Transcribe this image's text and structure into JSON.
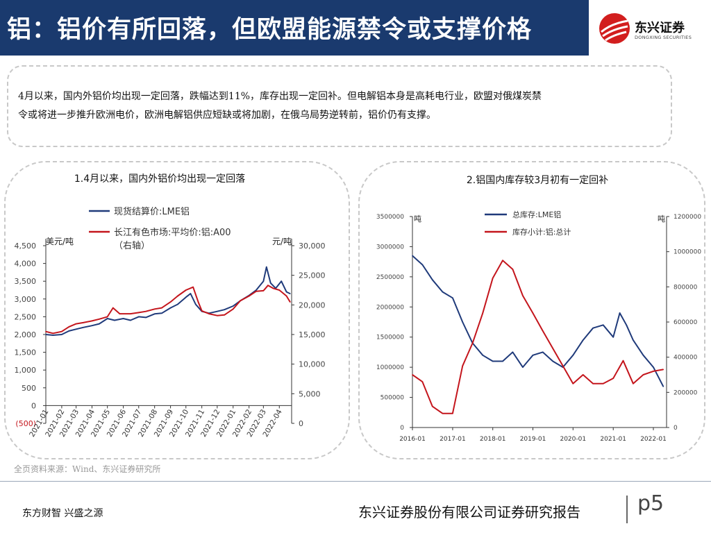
{
  "header": {
    "title": "铝：铝价有所回落，但欧盟能源禁令或支撑价格"
  },
  "logo": {
    "name": "东兴证券",
    "name_en": "DONGXING SECURITIES"
  },
  "summary": {
    "line1": "4月以来，国内外铝价均出现一定回落，跌幅达到11%，库存出现一定回补。但电解铝本身是高耗电行业，欧盟对俄煤炭禁",
    "line2": "令或将进一步推升欧洲电价，欧洲电解铝供应短缺或将加剧，在俄乌局势逆转前，铝价仍有支撑。"
  },
  "source": "全页资料来源：Wind、东兴证券研究所",
  "footer": {
    "left": "东方财智 兴盛之源",
    "right": "东兴证券股份有限公司证券研究报告",
    "page": "p5"
  },
  "colors": {
    "navy": "#1f3a7a",
    "red": "#c4151c",
    "header_bg": "#1a3a6e"
  },
  "chart_data": [
    {
      "type": "line",
      "title": "1.4月以来，国内外铝价均出现一定回落",
      "left_unit": "美元/吨",
      "right_unit": "元/吨",
      "y_left_ticks": [
        "4,500",
        "4,000",
        "3,500",
        "3,000",
        "2,500",
        "2,000",
        "1,500",
        "1,000",
        "500",
        "0",
        "(500)"
      ],
      "y_right_ticks": [
        "30,000",
        "25,000",
        "20,000",
        "15,000",
        "10,000",
        "5,000",
        "0"
      ],
      "ylim_left": [
        -500,
        4500
      ],
      "ylim_right": [
        0,
        30000
      ],
      "x_ticks": [
        "2021-01",
        "2021-02",
        "2021-03",
        "2021-04",
        "2021-05",
        "2021-06",
        "2021-07",
        "2021-08",
        "2021-09",
        "2021-10",
        "2021-11",
        "2021-12",
        "2022-01",
        "2022-02",
        "2022-03",
        "2022-04"
      ],
      "series": [
        {
          "name": "现货结算价:LME铝",
          "axis": "left",
          "color": "#1f3a7a",
          "x": [
            "2021-01-01",
            "2021-01-15",
            "2021-02-01",
            "2021-02-15",
            "2021-03-01",
            "2021-03-15",
            "2021-04-01",
            "2021-04-15",
            "2021-05-01",
            "2021-05-15",
            "2021-06-01",
            "2021-06-15",
            "2021-07-01",
            "2021-07-15",
            "2021-08-01",
            "2021-08-15",
            "2021-09-01",
            "2021-09-15",
            "2021-10-01",
            "2021-10-10",
            "2021-10-20",
            "2021-11-01",
            "2021-11-15",
            "2021-12-01",
            "2021-12-15",
            "2022-01-01",
            "2022-01-15",
            "2022-02-01",
            "2022-02-15",
            "2022-03-01",
            "2022-03-07",
            "2022-03-15",
            "2022-03-25",
            "2022-04-05",
            "2022-04-15",
            "2022-04-22"
          ],
          "values": [
            2000,
            1980,
            2000,
            2100,
            2150,
            2200,
            2250,
            2300,
            2450,
            2400,
            2450,
            2400,
            2500,
            2480,
            2580,
            2600,
            2750,
            2850,
            3050,
            3150,
            2850,
            2650,
            2600,
            2650,
            2700,
            2800,
            2950,
            3100,
            3250,
            3500,
            3900,
            3450,
            3300,
            3500,
            3200,
            3150
          ]
        },
        {
          "name": "长江有色市场:平均价:铝:A00（右轴）",
          "axis": "right",
          "color": "#c4151c",
          "x": [
            "2021-01-01",
            "2021-01-15",
            "2021-02-01",
            "2021-02-15",
            "2021-03-01",
            "2021-03-15",
            "2021-04-01",
            "2021-04-15",
            "2021-05-01",
            "2021-05-12",
            "2021-05-25",
            "2021-06-15",
            "2021-07-01",
            "2021-07-15",
            "2021-08-01",
            "2021-08-15",
            "2021-09-01",
            "2021-09-15",
            "2021-10-01",
            "2021-10-15",
            "2021-10-25",
            "2021-11-01",
            "2021-11-15",
            "2021-12-01",
            "2021-12-15",
            "2022-01-01",
            "2022-01-15",
            "2022-02-01",
            "2022-02-15",
            "2022-03-01",
            "2022-03-10",
            "2022-03-20",
            "2022-04-01",
            "2022-04-15",
            "2022-04-22"
          ],
          "values": [
            15500,
            15200,
            15500,
            16300,
            16800,
            17000,
            17300,
            17600,
            18000,
            19500,
            18500,
            18500,
            18700,
            18900,
            19300,
            19500,
            20500,
            21500,
            22500,
            23000,
            20500,
            19000,
            18500,
            18200,
            18300,
            19300,
            20700,
            21500,
            22300,
            22400,
            23300,
            22800,
            22500,
            21500,
            20500
          ]
        }
      ]
    },
    {
      "type": "line",
      "title": "2.铝国内库存较3月初有一定回补",
      "left_unit": "吨",
      "right_unit": "吨",
      "y_left_ticks": [
        "3500000",
        "3000000",
        "2500000",
        "2000000",
        "1500000",
        "1000000",
        "500000",
        "0"
      ],
      "y_right_ticks": [
        "1200000",
        "1000000",
        "800000",
        "600000",
        "400000",
        "200000",
        "0"
      ],
      "ylim_left": [
        0,
        3500000
      ],
      "ylim_right": [
        0,
        1200000
      ],
      "x_ticks": [
        "2016-01",
        "2017-01",
        "2018-01",
        "2019-01",
        "2020-01",
        "2021-01",
        "2022-01"
      ],
      "series": [
        {
          "name": "总库存:LME铝",
          "axis": "left",
          "color": "#1f3a7a",
          "x": [
            "2016-01",
            "2016-04",
            "2016-07",
            "2016-10",
            "2017-01",
            "2017-04",
            "2017-07",
            "2017-10",
            "2018-01",
            "2018-04",
            "2018-07",
            "2018-10",
            "2019-01",
            "2019-04",
            "2019-07",
            "2019-10",
            "2020-01",
            "2020-04",
            "2020-07",
            "2020-10",
            "2021-01",
            "2021-03",
            "2021-05",
            "2021-07",
            "2021-10",
            "2022-01",
            "2022-04"
          ],
          "values": [
            2850000,
            2700000,
            2450000,
            2250000,
            2150000,
            1750000,
            1400000,
            1200000,
            1100000,
            1100000,
            1250000,
            1000000,
            1200000,
            1250000,
            1100000,
            1000000,
            1200000,
            1450000,
            1650000,
            1700000,
            1500000,
            1900000,
            1700000,
            1450000,
            1200000,
            1000000,
            680000
          ]
        },
        {
          "name": "库存小计:铝:总计",
          "axis": "right",
          "color": "#c4151c",
          "x": [
            "2016-01",
            "2016-04",
            "2016-07",
            "2016-10",
            "2017-01",
            "2017-04",
            "2017-07",
            "2017-10",
            "2018-01",
            "2018-04",
            "2018-07",
            "2018-10",
            "2019-01",
            "2019-04",
            "2019-07",
            "2019-10",
            "2020-01",
            "2020-04",
            "2020-07",
            "2020-10",
            "2021-01",
            "2021-04",
            "2021-07",
            "2021-10",
            "2022-01",
            "2022-04"
          ],
          "values": [
            300000,
            260000,
            120000,
            80000,
            80000,
            350000,
            480000,
            650000,
            850000,
            950000,
            900000,
            750000,
            650000,
            550000,
            450000,
            350000,
            250000,
            300000,
            250000,
            250000,
            280000,
            380000,
            250000,
            300000,
            320000,
            330000
          ]
        }
      ]
    }
  ]
}
